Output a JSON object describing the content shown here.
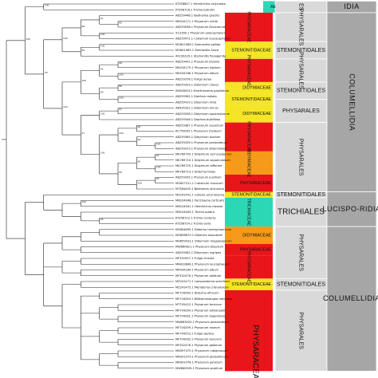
{
  "colors": {
    "physaraceae": "#e8161b",
    "didymiaceae": "#f59a1a",
    "stemonitidaceae": "#f4e526",
    "trichiaceae": "#2bd7b5",
    "order_box": "#d9d9d9",
    "subclass_box": "#a6a6a6",
    "branch": "#222222"
  },
  "leaves": [
    "KT358847.1 Hemitrichia calyculata",
    "KT358716.1 Trichia botrytis",
    "AB259448.1 Badhamia gracilis",
    "MK434171.1 Physarum viride",
    "AB259098.1 Physarum flavicomum",
    "X13160.1 Physarum polycephalum",
    "AB259472.1 Craterium leucocephalum",
    "MG641086.1 Stemonitis pallida",
    "MG641085.1 Stemonitis fusca",
    "AF239229.1 Stemonitis flavogenita",
    "AB259441.1 Physarum bivalve",
    "MK434175.1 Physarum rigidum",
    "MK434166.1 Physarum album",
    "AB259378.1 Fuligo aurea",
    "AB259393.1 Didymium clavus",
    "AY643823.2 Enerthenema papillatum",
    "AB259362.1 Diachea radiata",
    "AB259419.1 Didymium iridis",
    "AB435331.1 Didymium minus",
    "AB259358.1 Didymium squamulosum",
    "AB259346.1 Diachea bulbillosa",
    "AB259387.1 Physarum superbum",
    "KC759005.1 Physarum melleum",
    "AB259365.1 Didymium dubium",
    "AB259339.1 Physarum pezizoideum",
    "AB259373.1 Physarum didermoides",
    "MK789705.1 Didymium verrucosporum",
    "MK789710.1 Didymium squamulosum",
    "MK789725.1 Didymium difforme",
    "MK789714.1 Diderma fallax",
    "AB259395.1 Physarum pusillum",
    "MG657311.1 Craterium minutum",
    "MT384445.1 Badhamia utricularis",
    "MZ241441.1 Collaria arcyrionema",
    "MN104048.1 Perichaena corticalis",
    "MN104041.1 Hemitrichia clavata",
    "MN104049.1 Trichia scabra",
    "KT358722.1 Trichia contorta",
    "KT358724.1 Trichia varia",
    "MZ604695.1 Diderma hemisphaericum",
    "MG698670.1 Diderma saundersii",
    "MH659933.1 Didymium megalosporum",
    "MW660621.1 Physarum bitectum",
    "AB259382.1 Didymium nigripes",
    "MF352457.1 Fuligo cinerea",
    "MN433848.1 Physarum leucophaeum",
    "MK434184.1 Physarum album",
    "MF352476.1 Physarum oblatum",
    "MZ241471.1 Lamproderma scintillans",
    "MZ241475.1 Meriderma cribrarioides",
    "MF704260.1 Diderma effusum",
    "MF704263.1 Willkommlangea reticulata",
    "MT705422.1 Physarum tenerum",
    "MF704264.1 Physarum lakhanpalii",
    "MF704261.1 Physarum bogoriense",
    "MW663020.1 Physarum pezizoideum",
    "MF704259.1 Physarum roseum",
    "MF704253.1 Fuligo septica",
    "MF704262.1 Physarum tenerum",
    "MF352478.1 Physarum galbeum",
    "MN397375.1 Physarum rubiginosum",
    "MN391079.1 Physarum globuliferum",
    "MN391078.1 Physarum gyrosum",
    "MW660939.1 Physarum pusillum"
  ],
  "families": [
    {
      "label": "TRICHIACEAE",
      "visible_label": "AE",
      "color": "trichiaceae",
      "orient": "h"
    },
    {
      "label": "PHYSARACEAE",
      "color": "physaraceae",
      "orient": "v"
    },
    {
      "label": "STEMONITIDACEAE",
      "color": "stemonitidaceae",
      "orient": "h"
    },
    {
      "label": "PHYSARACEAE",
      "color": "physaraceae",
      "orient": "v"
    },
    {
      "label": "DIDYMIACEAE",
      "color": "stemonitidaceae",
      "orient": "h"
    },
    {
      "label": "STEMONITIDACEAE",
      "color": "stemonitidaceae",
      "orient": "h"
    },
    {
      "label": "DIDYMIACEAE",
      "color": "stemonitidaceae",
      "orient": "h"
    },
    {
      "label": "PHYSARACEAE",
      "color": "physaraceae",
      "orient": "v"
    },
    {
      "label": "DIDYMIACEAE",
      "color": "didymiaceae",
      "orient": "v"
    },
    {
      "label": "PHYSARACEAE",
      "color": "physaraceae",
      "orient": "h"
    },
    {
      "label": "STEMONITIDACEAE",
      "color": "stemonitidaceae",
      "orient": "h"
    },
    {
      "label": "TRICHIACEAE",
      "color": "trichiaceae",
      "orient": "v"
    },
    {
      "label": "DIDYMIACEAE",
      "color": "didymiaceae",
      "orient": "h"
    },
    {
      "label": "PHYSARACEAE",
      "color": "physaraceae",
      "orient": "h"
    },
    {
      "label": "PHYSARACEAE",
      "color": "physaraceae",
      "orient": "v"
    },
    {
      "label": "STEMONITIDACEAE",
      "color": "stemonitidaceae",
      "orient": "h"
    },
    {
      "label": "PHYSARACEAE",
      "color": "physaraceae",
      "orient": "big"
    }
  ],
  "orders": [
    {
      "label": "TRICHIALES",
      "visible_label": "ES",
      "orient": "v"
    },
    {
      "label": "PHYSARALES",
      "orient": "v"
    },
    {
      "label": "STEMONITIDALES",
      "orient": "h"
    },
    {
      "label": "PHYSARALES",
      "orient": "v"
    },
    {
      "label": "STEMONITIDALES",
      "orient": "h"
    },
    {
      "label": "PHYSARALES",
      "orient": "h"
    },
    {
      "label": "PHYSARALES",
      "orient": "v"
    },
    {
      "label": "STEMONITIDALES",
      "orient": "h"
    },
    {
      "label": "TRICHIALES",
      "orient": "big"
    },
    {
      "label": "PHYSARALES",
      "orient": "v"
    },
    {
      "label": "STEMONITIDALES",
      "orient": "h"
    },
    {
      "label": "PHYSARALES",
      "orient": "v"
    }
  ],
  "subclasses": [
    {
      "label": "COLUMELLIDIA",
      "visible_label": "IDIA",
      "orient": "h"
    },
    {
      "label": "COLUMELLIDIA",
      "orient": "v"
    },
    {
      "label": "LUCISPO-RIDIA",
      "orient": "v2"
    },
    {
      "label": "COLUMELLIDIA",
      "orient": "h"
    }
  ],
  "supports": [
    "100",
    "99",
    "97",
    "100",
    "98",
    "100",
    "99",
    "100",
    "96",
    "100",
    "95",
    "88",
    "100",
    "99",
    "100",
    "97",
    "100",
    "98",
    "100",
    "94",
    "100",
    "92",
    "100",
    "99",
    "83",
    "100",
    "99",
    "100",
    "97",
    "100",
    "78",
    "100",
    "100",
    "96"
  ]
}
